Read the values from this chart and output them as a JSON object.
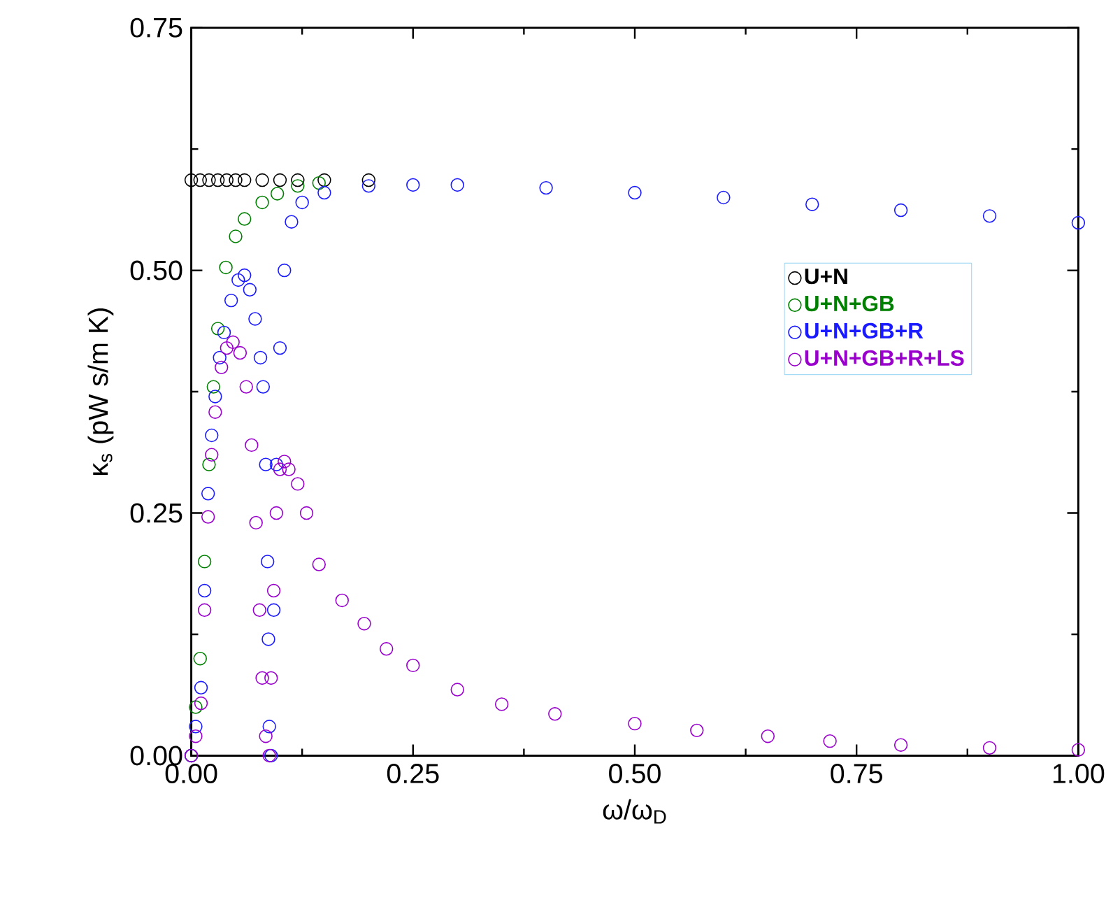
{
  "chart_data": {
    "type": "scatter",
    "xlabel": "ω/ω$_{D}$",
    "ylabel": "κ$_{s}$ (pW s/m K)",
    "marker": "circle",
    "legend": "right",
    "grid": false,
    "xlim": [
      0,
      1
    ],
    "ylim": [
      0,
      0.75
    ],
    "xticks": [
      {
        "value": 0,
        "label": "0.00"
      },
      {
        "value": 0.25,
        "label": "0.25"
      },
      {
        "value": 0.5,
        "label": "0.50"
      },
      {
        "value": 0.75,
        "label": "0.75"
      },
      {
        "value": 1,
        "label": "1.00"
      }
    ],
    "yticks": [
      {
        "value": 0,
        "label": "0.00"
      },
      {
        "value": 0.25,
        "label": "0.25"
      },
      {
        "value": 0.5,
        "label": "0.50"
      },
      {
        "value": 0.75,
        "label": "0.75"
      }
    ],
    "series": [
      {
        "name": "U+N",
        "color": "#000000",
        "x": [
          0,
          0.01,
          0.02,
          0.03,
          0.04,
          0.05,
          0.06,
          0.08,
          0.1,
          0.12,
          0.15,
          0.2
        ],
        "values": [
          0.593,
          0.593,
          0.593,
          0.593,
          0.593,
          0.593,
          0.593,
          0.593,
          0.593,
          0.593,
          0.593,
          0.593
        ]
      },
      {
        "name": "U+N+GB",
        "color": "#008000",
        "x": [
          0,
          0.005,
          0.01,
          0.015,
          0.02,
          0.025,
          0.03,
          0.039,
          0.05,
          0.06,
          0.08,
          0.097,
          0.12,
          0.144
        ],
        "values": [
          0,
          0.05,
          0.1,
          0.2,
          0.3,
          0.38,
          0.44,
          0.503,
          0.535,
          0.553,
          0.57,
          0.579,
          0.587,
          0.59
        ]
      },
      {
        "name": "U+N+GB+R",
        "color": "#1a1aff",
        "x": [
          0,
          0.005,
          0.011,
          0.015,
          0.019,
          0.023,
          0.027,
          0.032,
          0.037,
          0.045,
          0.053,
          0.06,
          0.066,
          0.072,
          0.078,
          0.081,
          0.084,
          0.086,
          0.087,
          0.088,
          0.09,
          0.093,
          0.096,
          0.1,
          0.105,
          0.113,
          0.125,
          0.15,
          0.2,
          0.25,
          0.3,
          0.4,
          0.5,
          0.6,
          0.7,
          0.8,
          0.9,
          1.0
        ],
        "values": [
          0,
          0.03,
          0.07,
          0.17,
          0.27,
          0.33,
          0.37,
          0.41,
          0.436,
          0.469,
          0.49,
          0.495,
          0.48,
          0.45,
          0.41,
          0.38,
          0.3,
          0.2,
          0.12,
          0.03,
          0,
          0.15,
          0.3,
          0.42,
          0.5,
          0.55,
          0.57,
          0.58,
          0.587,
          0.588,
          0.588,
          0.585,
          0.58,
          0.575,
          0.568,
          0.562,
          0.556,
          0.549
        ]
      },
      {
        "name": "U+N+GB+R+LS",
        "color": "#9900cc",
        "x": [
          0,
          0.005,
          0.011,
          0.015,
          0.019,
          0.023,
          0.027,
          0.034,
          0.04,
          0.047,
          0.055,
          0.062,
          0.068,
          0.073,
          0.077,
          0.08,
          0.084,
          0.088,
          0.09,
          0.093,
          0.096,
          0.1,
          0.105,
          0.11,
          0.12,
          0.13,
          0.144,
          0.17,
          0.195,
          0.22,
          0.25,
          0.3,
          0.35,
          0.41,
          0.5,
          0.57,
          0.65,
          0.72,
          0.8,
          0.9,
          1.0
        ],
        "values": [
          0,
          0.02,
          0.054,
          0.15,
          0.246,
          0.31,
          0.354,
          0.4,
          0.42,
          0.426,
          0.415,
          0.38,
          0.32,
          0.24,
          0.15,
          0.08,
          0.02,
          0,
          0.08,
          0.17,
          0.25,
          0.295,
          0.303,
          0.295,
          0.28,
          0.25,
          0.197,
          0.16,
          0.136,
          0.11,
          0.093,
          0.068,
          0.053,
          0.043,
          0.033,
          0.026,
          0.02,
          0.015,
          0.011,
          0.008,
          0.006
        ]
      }
    ]
  }
}
